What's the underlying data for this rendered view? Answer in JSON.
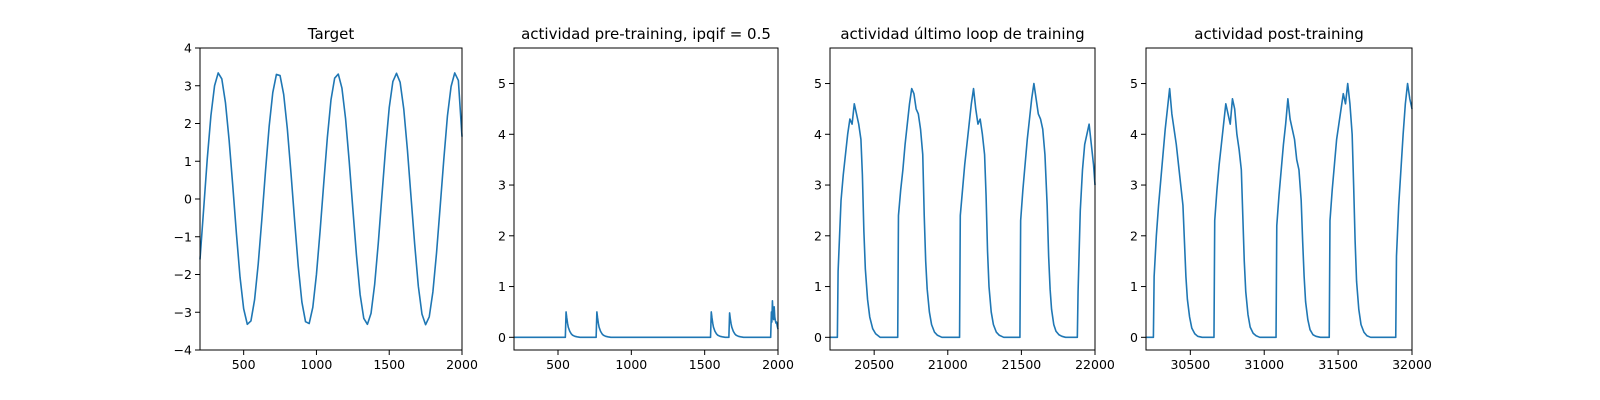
{
  "chart_data": [
    {
      "type": "line",
      "title": "Target",
      "xlabel": "",
      "ylabel": "",
      "xlim": [
        200,
        2000
      ],
      "ylim": [
        -4,
        4
      ],
      "xticks": [
        500,
        1000,
        1500,
        2000
      ],
      "yticks": [
        -4,
        -3,
        -2,
        -1,
        0,
        1,
        2,
        3,
        4
      ],
      "xtick_labels": [
        "500",
        "1000",
        "1500",
        "2000"
      ],
      "ytick_labels": [
        "−4",
        "−3",
        "−2",
        "−1",
        "0",
        "1",
        "2",
        "3",
        "4"
      ],
      "grid": false,
      "series": [
        {
          "color": "#1f77b4",
          "x": [
            200,
            225,
            250,
            275,
            300,
            325,
            350,
            375,
            400,
            425,
            450,
            475,
            500,
            525,
            550,
            575,
            600,
            625,
            650,
            675,
            700,
            725,
            750,
            775,
            800,
            825,
            850,
            875,
            900,
            925,
            950,
            975,
            1000,
            1025,
            1050,
            1075,
            1100,
            1125,
            1150,
            1175,
            1200,
            1225,
            1250,
            1275,
            1300,
            1325,
            1350,
            1375,
            1400,
            1425,
            1450,
            1475,
            1500,
            1525,
            1550,
            1575,
            1600,
            1625,
            1650,
            1675,
            1700,
            1725,
            1750,
            1775,
            1800,
            1825,
            1850,
            1875,
            1900,
            1925,
            1950,
            1975,
            2000
          ],
          "y": [
            -1.6,
            -0.27,
            1.07,
            2.21,
            3.0,
            3.34,
            3.18,
            2.55,
            1.56,
            0.36,
            -0.91,
            -2.07,
            -2.91,
            -3.32,
            -3.23,
            -2.67,
            -1.72,
            -0.53,
            0.74,
            1.92,
            2.82,
            3.3,
            3.27,
            2.77,
            1.86,
            0.69,
            -0.57,
            -1.78,
            -2.73,
            -3.25,
            -3.3,
            -2.87,
            -2.0,
            -0.85,
            0.41,
            1.63,
            2.63,
            3.2,
            3.31,
            2.94,
            2.13,
            1.0,
            -0.26,
            -1.49,
            -2.53,
            -3.16,
            -3.32,
            -3.03,
            -2.26,
            -1.16,
            0.1,
            1.34,
            2.42,
            3.11,
            3.33,
            3.09,
            2.38,
            1.3,
            0.04,
            -1.2,
            -2.31,
            -3.05,
            -3.33,
            -3.12,
            -2.46,
            -1.43,
            -0.2,
            1.05,
            2.2,
            2.98,
            3.34,
            3.14,
            1.65
          ]
        }
      ]
    },
    {
      "type": "line",
      "title": "actividad pre-training, ipqif = 0.5",
      "xlabel": "",
      "ylabel": "",
      "xlim": [
        200,
        2000
      ],
      "ylim": [
        -0.25,
        5.7
      ],
      "xticks": [
        500,
        1000,
        1500,
        2000
      ],
      "yticks": [
        0,
        1,
        2,
        3,
        4,
        5
      ],
      "xtick_labels": [
        "500",
        "1000",
        "1500",
        "2000"
      ],
      "ytick_labels": [
        "0",
        "1",
        "2",
        "3",
        "4",
        "5"
      ],
      "grid": false,
      "series": [
        {
          "color": "#1f77b4",
          "x": [
            200,
            550,
            555,
            560,
            565,
            570,
            580,
            590,
            600,
            615,
            630,
            650,
            760,
            765,
            770,
            775,
            780,
            790,
            800,
            810,
            825,
            840,
            860,
            1540,
            1545,
            1550,
            1555,
            1560,
            1570,
            1580,
            1590,
            1605,
            1620,
            1640,
            1665,
            1670,
            1675,
            1680,
            1685,
            1695,
            1705,
            1715,
            1730,
            1745,
            1765,
            1950,
            1955,
            1958,
            1962,
            1966,
            1970,
            1974,
            1978,
            1982,
            1986,
            1990,
            1995,
            2000
          ],
          "y": [
            0,
            0,
            0.5,
            0.38,
            0.28,
            0.2,
            0.12,
            0.07,
            0.04,
            0.02,
            0.01,
            0,
            0,
            0.5,
            0.38,
            0.28,
            0.2,
            0.12,
            0.07,
            0.04,
            0.02,
            0.01,
            0,
            0,
            0.5,
            0.38,
            0.28,
            0.2,
            0.12,
            0.07,
            0.04,
            0.02,
            0.01,
            0,
            0,
            0.48,
            0.36,
            0.27,
            0.2,
            0.12,
            0.07,
            0.04,
            0.02,
            0.01,
            0,
            0,
            0.5,
            0.3,
            0.72,
            0.45,
            0.35,
            0.6,
            0.4,
            0.33,
            0.28,
            0.3,
            0.22,
            0.16
          ]
        }
      ]
    },
    {
      "type": "line",
      "title": "actividad último loop de training",
      "xlabel": "",
      "ylabel": "",
      "xlim": [
        20200,
        22000
      ],
      "ylim": [
        -0.25,
        5.7
      ],
      "xticks": [
        20500,
        21000,
        21500,
        22000
      ],
      "yticks": [
        0,
        1,
        2,
        3,
        4,
        5
      ],
      "xtick_labels": [
        "20500",
        "21000",
        "21500",
        "22000"
      ],
      "ytick_labels": [
        "0",
        "1",
        "2",
        "3",
        "4",
        "5"
      ],
      "grid": false,
      "series": [
        {
          "color": "#1f77b4",
          "x": [
            20200,
            20250,
            20255,
            20265,
            20275,
            20290,
            20305,
            20320,
            20335,
            20350,
            20365,
            20380,
            20395,
            20410,
            20420,
            20430,
            20440,
            20455,
            20470,
            20490,
            20510,
            20540,
            20660,
            20665,
            20680,
            20695,
            20710,
            20725,
            20740,
            20755,
            20770,
            20785,
            20800,
            20815,
            20830,
            20840,
            20850,
            20860,
            20875,
            20890,
            20910,
            20930,
            20960,
            21080,
            21085,
            21100,
            21115,
            21130,
            21145,
            21160,
            21175,
            21190,
            21205,
            21220,
            21235,
            21250,
            21260,
            21270,
            21280,
            21295,
            21310,
            21330,
            21350,
            21380,
            21490,
            21495,
            21510,
            21525,
            21540,
            21555,
            21570,
            21585,
            21600,
            21615,
            21630,
            21645,
            21660,
            21675,
            21685,
            21695,
            21705,
            21720,
            21735,
            21755,
            21775,
            21800,
            21880,
            21885,
            21900,
            21915,
            21930,
            21945,
            21960,
            21975,
            21990,
            22000
          ],
          "y": [
            0,
            0,
            1.3,
            2.0,
            2.7,
            3.2,
            3.6,
            4.0,
            4.3,
            4.2,
            4.6,
            4.4,
            4.2,
            3.9,
            3.2,
            2.1,
            1.35,
            0.75,
            0.4,
            0.17,
            0.07,
            0,
            0,
            2.4,
            2.9,
            3.3,
            3.8,
            4.2,
            4.6,
            4.9,
            4.8,
            4.5,
            4.4,
            4.1,
            3.6,
            2.4,
            1.5,
            0.95,
            0.5,
            0.25,
            0.1,
            0.04,
            0,
            0,
            2.4,
            2.9,
            3.4,
            3.8,
            4.2,
            4.6,
            4.9,
            4.5,
            4.2,
            4.3,
            4.0,
            3.6,
            2.8,
            1.7,
            1.0,
            0.5,
            0.25,
            0.1,
            0.04,
            0,
            0,
            2.3,
            2.9,
            3.4,
            3.9,
            4.3,
            4.7,
            5.0,
            4.7,
            4.4,
            4.3,
            4.1,
            3.6,
            2.6,
            1.6,
            0.95,
            0.55,
            0.25,
            0.12,
            0.05,
            0.02,
            0,
            0,
            0.9,
            2.5,
            3.3,
            3.8,
            4.0,
            4.2,
            3.8,
            3.4,
            3.0
          ]
        }
      ]
    },
    {
      "type": "line",
      "title": "actividad post-training",
      "xlabel": "",
      "ylabel": "",
      "xlim": [
        30200,
        32000
      ],
      "ylim": [
        -0.25,
        5.7
      ],
      "xticks": [
        30500,
        31000,
        31500,
        32000
      ],
      "yticks": [
        0,
        1,
        2,
        3,
        4,
        5
      ],
      "xtick_labels": [
        "30500",
        "31000",
        "31500",
        "32000"
      ],
      "ytick_labels": [
        "0",
        "1",
        "2",
        "3",
        "4",
        "5"
      ],
      "grid": false,
      "series": [
        {
          "color": "#1f77b4",
          "x": [
            30200,
            30250,
            30255,
            30270,
            30285,
            30300,
            30315,
            30330,
            30345,
            30360,
            30375,
            30390,
            30405,
            30420,
            30435,
            30450,
            30460,
            30470,
            30480,
            30495,
            30510,
            30530,
            30550,
            30580,
            30660,
            30665,
            30680,
            30695,
            30710,
            30725,
            30740,
            30755,
            30770,
            30785,
            30800,
            30815,
            30830,
            30845,
            30855,
            30865,
            30875,
            30890,
            30905,
            30925,
            30945,
            30970,
            31080,
            31085,
            31100,
            31115,
            31130,
            31145,
            31160,
            31175,
            31190,
            31205,
            31220,
            31235,
            31250,
            31260,
            31270,
            31280,
            31295,
            31310,
            31330,
            31350,
            31380,
            31440,
            31445,
            31460,
            31475,
            31490,
            31505,
            31520,
            31535,
            31550,
            31565,
            31580,
            31595,
            31605,
            31615,
            31625,
            31640,
            31655,
            31675,
            31695,
            31720,
            31890,
            31895,
            31910,
            31925,
            31940,
            31955,
            31970,
            31985,
            32000
          ],
          "y": [
            0,
            0,
            1.2,
            2.0,
            2.6,
            3.1,
            3.6,
            4.1,
            4.5,
            4.9,
            4.4,
            4.1,
            3.8,
            3.4,
            3.0,
            2.6,
            1.9,
            1.2,
            0.75,
            0.4,
            0.18,
            0.07,
            0.02,
            0,
            0,
            2.3,
            2.9,
            3.4,
            3.8,
            4.2,
            4.6,
            4.4,
            4.2,
            4.7,
            4.5,
            4.0,
            3.7,
            3.3,
            2.4,
            1.5,
            0.9,
            0.45,
            0.2,
            0.08,
            0.03,
            0,
            0,
            2.2,
            2.8,
            3.3,
            3.8,
            4.2,
            4.7,
            4.3,
            4.1,
            3.9,
            3.5,
            3.3,
            2.7,
            1.9,
            1.2,
            0.7,
            0.35,
            0.15,
            0.05,
            0.02,
            0,
            0,
            2.3,
            2.9,
            3.4,
            3.9,
            4.2,
            4.5,
            4.8,
            4.6,
            5.0,
            4.6,
            4.0,
            3.0,
            1.9,
            1.1,
            0.55,
            0.25,
            0.1,
            0.03,
            0,
            0,
            1.6,
            2.6,
            3.3,
            4.0,
            4.6,
            5.0,
            4.7,
            4.5
          ]
        }
      ]
    }
  ]
}
